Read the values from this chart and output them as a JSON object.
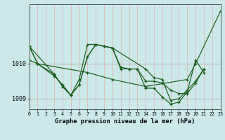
{
  "title": "Graphe pression niveau de la mer (hPa)",
  "bg_color": "#cce8e8",
  "line_color": "#1a5c1a",
  "vgrid_color": "#e8b0b0",
  "hgrid_color": "#c0b0b0",
  "xlim": [
    0,
    23
  ],
  "ylim": [
    1008.7,
    1011.7
  ],
  "yticks": [
    1009,
    1010
  ],
  "xticks": [
    0,
    1,
    2,
    3,
    4,
    5,
    6,
    7,
    8,
    9,
    10,
    11,
    12,
    13,
    14,
    15,
    16,
    17,
    18,
    19,
    20,
    21,
    22,
    23
  ],
  "series": [
    {
      "x": [
        0,
        1,
        7,
        10,
        14,
        19,
        20,
        23
      ],
      "y": [
        1010.1,
        1010.0,
        1009.75,
        1009.55,
        1009.35,
        1009.55,
        1010.0,
        1011.5
      ]
    },
    {
      "x": [
        0,
        1,
        3,
        4,
        5,
        6,
        7,
        8,
        9,
        10,
        11,
        12,
        13,
        14,
        15,
        16,
        17,
        18,
        19,
        20,
        21
      ],
      "y": [
        1010.5,
        1010.0,
        1009.7,
        1009.35,
        1009.1,
        1009.4,
        1010.2,
        1010.55,
        1010.5,
        1010.45,
        1009.9,
        1009.85,
        1009.85,
        1009.3,
        1009.3,
        1009.05,
        1008.85,
        1008.9,
        1009.2,
        1010.1,
        1009.75
      ]
    },
    {
      "x": [
        0,
        3,
        4,
        5,
        6,
        7,
        8,
        9,
        10,
        11,
        12,
        13,
        14,
        15,
        16,
        17,
        18,
        19,
        20,
        21
      ],
      "y": [
        1010.5,
        1009.7,
        1009.35,
        1009.1,
        1009.55,
        1010.55,
        1010.55,
        1010.5,
        1010.45,
        1009.85,
        1009.85,
        1009.85,
        1009.5,
        1009.5,
        1009.45,
        1009.25,
        1009.15,
        1009.15,
        1009.45,
        1009.85
      ]
    },
    {
      "x": [
        0,
        1,
        3,
        4,
        5,
        6,
        7,
        8,
        9,
        10,
        14,
        15,
        16,
        17,
        18,
        19,
        20,
        21
      ],
      "y": [
        1010.5,
        1010.0,
        1009.65,
        1009.4,
        1009.1,
        1009.4,
        1010.2,
        1010.55,
        1010.5,
        1010.45,
        1009.85,
        1009.6,
        1009.55,
        1008.95,
        1009.0,
        1009.25,
        1009.5,
        1009.85
      ]
    }
  ]
}
